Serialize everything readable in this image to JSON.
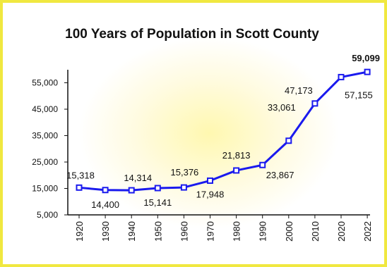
{
  "chart_data": {
    "type": "line",
    "title": "100 Years of Population in Scott County",
    "xlabel": "",
    "ylabel": "",
    "x": [
      "1920",
      "1930",
      "1940",
      "1950",
      "1960",
      "1970",
      "1980",
      "1990",
      "2000",
      "2010",
      "2020",
      "2022"
    ],
    "series": [
      {
        "values": [
          15318,
          14400,
          14314,
          15141,
          15376,
          17948,
          21813,
          23867,
          33061,
          47173,
          57155,
          59099
        ]
      }
    ],
    "data_labels": [
      "15,318",
      "14,400",
      "14,314",
      "15,141",
      "15,376",
      "17,948",
      "21,813",
      "23,867",
      "33,061",
      "47,173",
      "57,155",
      "59,099"
    ],
    "y_ticks": [
      5000,
      15000,
      25000,
      35000,
      45000,
      55000
    ],
    "y_tick_labels": [
      "5,000",
      "15,000",
      "25,000",
      "35,000",
      "45,000",
      "55,000"
    ],
    "ylim": [
      5000,
      55000
    ],
    "grid": false,
    "legend": "none",
    "colors": {
      "line": "#1a1aee",
      "marker_fill": "#ffffff",
      "border": "#f0e840"
    }
  }
}
